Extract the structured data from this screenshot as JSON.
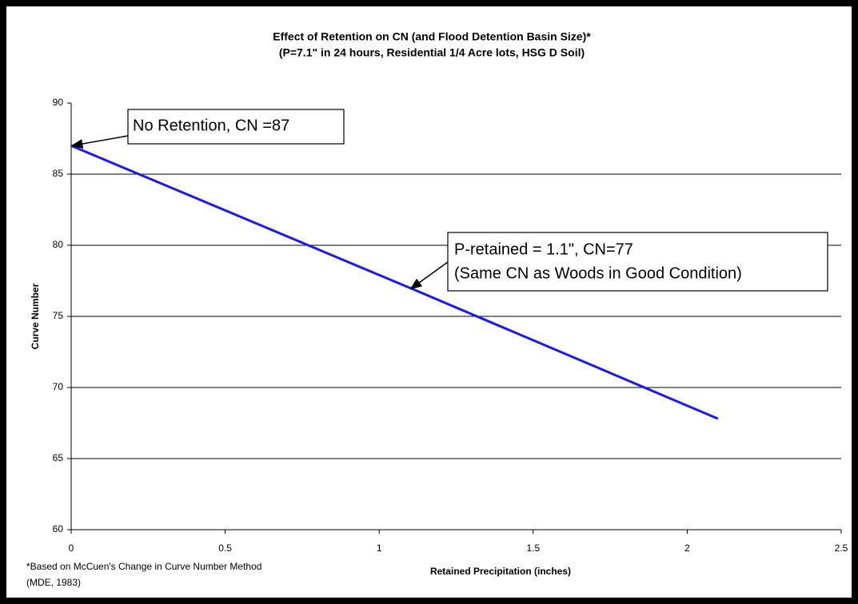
{
  "chart_data": {
    "type": "line",
    "title": [
      "Effect of Retention on CN (and Flood Detention Basin Size)*",
      "(P=7.1\" in 24 hours, Residential 1/4 Acre lots, HSG D Soil)"
    ],
    "x_label": "Retained Precipitation (inches)",
    "y_label": "Curve Number",
    "footnote": [
      "*Based on McCuen's Change in Curve Number Method",
      "(MDE, 1983)"
    ],
    "x": [
      0,
      1.1,
      2.1
    ],
    "series": [
      {
        "name": "Curve Number",
        "color": "#1a1aee",
        "values": [
          87,
          77,
          67.8
        ]
      }
    ],
    "xlim": [
      0,
      2.5
    ],
    "xticks": [
      0,
      0.5,
      1,
      1.5,
      2,
      2.5
    ],
    "ylim": [
      60,
      90
    ],
    "yticks": [
      60,
      65,
      70,
      75,
      80,
      85,
      90
    ],
    "grid": true,
    "annotations": [
      {
        "text": [
          "No Retention, CN =87"
        ]
      },
      {
        "text": [
          "P-retained = 1.1\", CN=77",
          "(Same CN as Woods in Good Condition)"
        ]
      }
    ]
  }
}
